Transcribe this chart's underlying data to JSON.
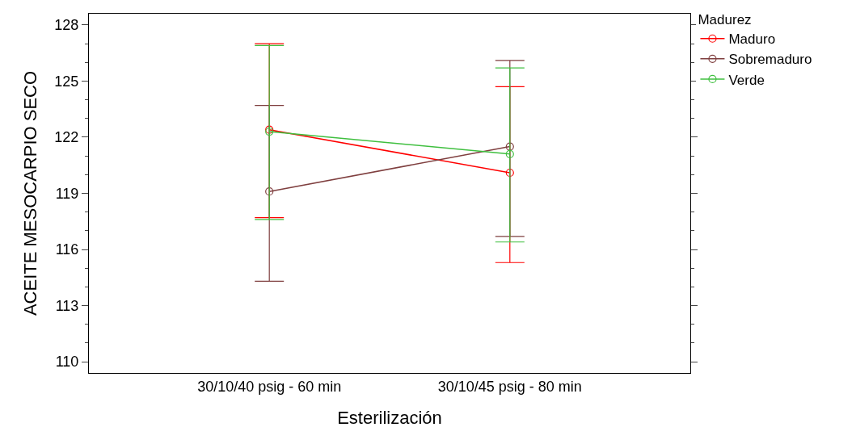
{
  "chart_data": {
    "type": "line",
    "xlabel": "Esterilización",
    "ylabel": "ACEITE MESOCARPIO SECO",
    "legend_title": "Madurez",
    "categories": [
      "30/10/40 psig - 60 min",
      "30/10/45 psig - 80 min"
    ],
    "series": [
      {
        "name": "Maduro",
        "color": "#ff0000",
        "values": [
          122.4,
          120.1
        ],
        "errors": [
          [
            117.7,
            127.0
          ],
          [
            115.3,
            124.7
          ]
        ]
      },
      {
        "name": "Sobremaduro",
        "color": "#7f3f3f",
        "values": [
          119.1,
          121.5
        ],
        "errors": [
          [
            114.3,
            123.7
          ],
          [
            116.7,
            126.1
          ]
        ]
      },
      {
        "name": "Verde",
        "color": "#3fbf3f",
        "values": [
          122.3,
          121.1
        ],
        "errors": [
          [
            117.6,
            126.9
          ],
          [
            116.4,
            125.7
          ]
        ]
      }
    ],
    "ylim": [
      109.4,
      128.6
    ],
    "yticks": [
      110,
      113,
      116,
      119,
      122,
      125,
      128
    ],
    "legend": "top right",
    "marker": "circle",
    "line_style": "solid"
  }
}
